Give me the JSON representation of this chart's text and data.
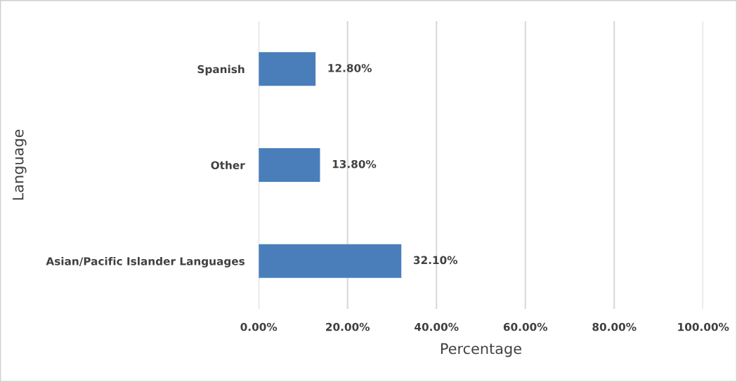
{
  "chart_data": {
    "type": "bar",
    "orientation": "horizontal",
    "xlabel": "Percentage",
    "ylabel": "Language",
    "categories": [
      "Spanish",
      "Other",
      "Asian/Pacific Islander Languages"
    ],
    "values": [
      12.8,
      13.8,
      32.1
    ],
    "color": "#4a7ebb",
    "value_labels": [
      "12.80%",
      "13.80%",
      "32.10%"
    ],
    "xlim": [
      0,
      100
    ],
    "xticks": [
      {
        "value": 0,
        "label": "0.00%"
      },
      {
        "value": 20,
        "label": "20.00%"
      },
      {
        "value": 40,
        "label": "40.00%"
      },
      {
        "value": 60,
        "label": "60.00%"
      },
      {
        "value": 80,
        "label": "80.00%"
      },
      {
        "value": 100,
        "label": "100.00%"
      }
    ],
    "grid": "x",
    "legend": false
  }
}
